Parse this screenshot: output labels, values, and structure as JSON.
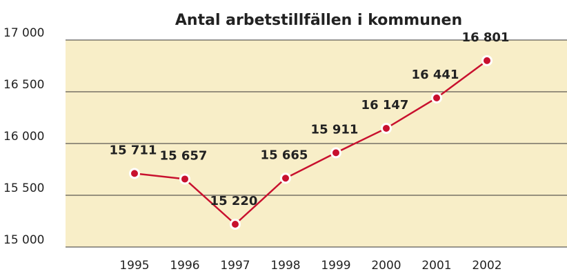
{
  "chart_data": {
    "type": "line",
    "title": "Antal arbetstillfällen i kommunen",
    "categories": [
      "1995",
      "1996",
      "1997",
      "1998",
      "1999",
      "2000",
      "2001",
      "2002"
    ],
    "series": [
      {
        "color": "#c8102e",
        "values": [
          15711,
          15657,
          15220,
          15665,
          15911,
          16147,
          16441,
          16801
        ],
        "value_labels": [
          "15 711",
          "15 657",
          "15 220",
          "15 665",
          "15 911",
          "16 147",
          "16 441",
          "16 801"
        ]
      }
    ],
    "ylim": [
      15000,
      17000
    ],
    "yticks": [
      {
        "value": 15000,
        "label": "15 000"
      },
      {
        "value": 15500,
        "label": "15 500"
      },
      {
        "value": 16000,
        "label": "16 000"
      },
      {
        "value": 16500,
        "label": "16 500"
      },
      {
        "value": 17000,
        "label": "17 000"
      }
    ],
    "grid": true,
    "background": "#f8eec8"
  }
}
